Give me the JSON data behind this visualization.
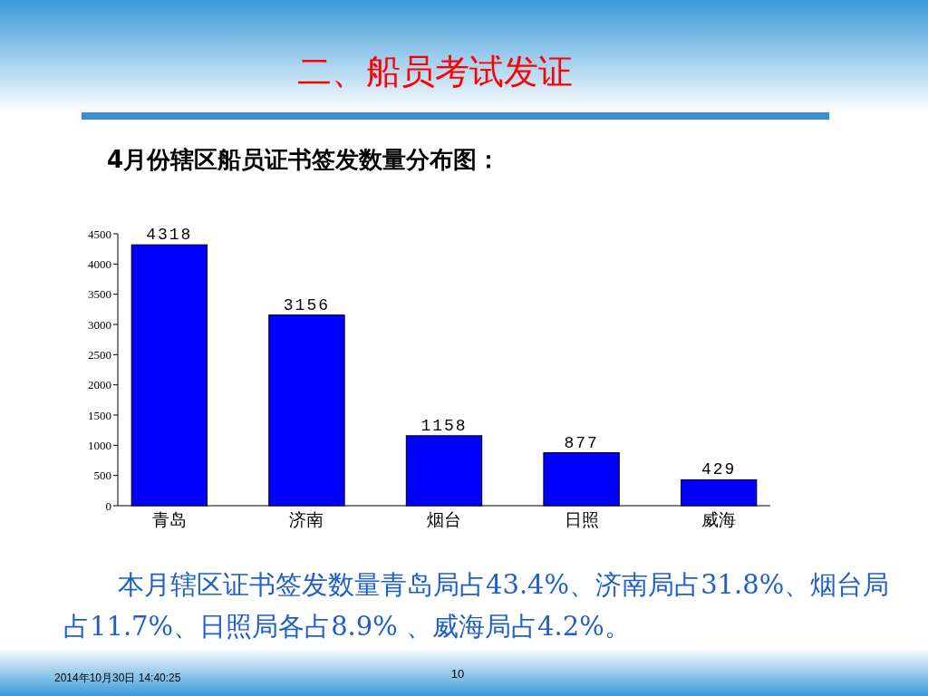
{
  "chart_data": {
    "type": "bar",
    "title": "二、船员考试发证",
    "subtitle": "4月份辖区船员证书签发数量分布图：",
    "categories": [
      "青岛",
      "济南",
      "烟台",
      "日照",
      "威海"
    ],
    "values": [
      4318,
      3156,
      1158,
      877,
      429
    ],
    "color": "#0000ff",
    "ylim": [
      0,
      4500
    ],
    "yticks": [
      0,
      500,
      1000,
      1500,
      2000,
      2500,
      3000,
      3500,
      4000,
      4500
    ],
    "grid": false,
    "data_labels": true,
    "annotations": [
      "本月辖区证书签发数量青岛局占43.4%、济南局占31.8%、烟台局占11.7%、日照局各占8.9% 、威海局占4.2%。",
      "2014年10月30日  14:40:25",
      "10"
    ]
  }
}
